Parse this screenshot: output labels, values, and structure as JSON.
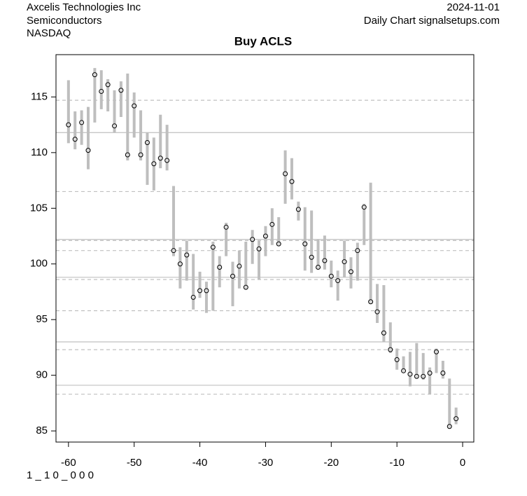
{
  "chart_data": {
    "type": "range",
    "header_left": [
      "Axcelis Technologies Inc",
      "Semiconductors",
      "NASDAQ"
    ],
    "header_right": [
      "2024-11-01",
      "Daily Chart signalsetups.com"
    ],
    "title": "Buy ACLS",
    "footer": "1 _ 1 0 _ 0 0 0",
    "x": [
      -60,
      -59,
      -58,
      -57,
      -56,
      -55,
      -54,
      -53,
      -52,
      -51,
      -50,
      -49,
      -48,
      -47,
      -46,
      -45,
      -44,
      -43,
      -42,
      -41,
      -40,
      -39,
      -38,
      -37,
      -36,
      -35,
      -34,
      -33,
      -32,
      -31,
      -30,
      -29,
      -28,
      -27,
      -26,
      -25,
      -24,
      -23,
      -22,
      -21,
      -20,
      -19,
      -18,
      -17,
      -16,
      -15,
      -14,
      -13,
      -12,
      -11,
      -10,
      -9,
      -8,
      -7,
      -6,
      -5,
      -4,
      -3,
      -2,
      -1
    ],
    "high": [
      116.5,
      113.7,
      113.8,
      114.1,
      117.6,
      117.4,
      116.6,
      115.6,
      116.4,
      117.1,
      115.4,
      113.8,
      111.8,
      111.35,
      113.4,
      112.5,
      107.0,
      101.5,
      102.1,
      100.9,
      99.3,
      98.4,
      102.0,
      100.7,
      103.7,
      100.2,
      101.2,
      102.0,
      103.05,
      102.1,
      103.4,
      105.0,
      104.2,
      110.2,
      109.5,
      105.6,
      105.1,
      104.8,
      102.2,
      102.55,
      100.3,
      99.4,
      102.1,
      100.6,
      101.9,
      105.4,
      107.3,
      98.2,
      98.1,
      94.75,
      92.4,
      91.7,
      92.1,
      92.9,
      92.0,
      90.7,
      92.4,
      91.3,
      89.7,
      87.1
    ],
    "low": [
      110.85,
      110.3,
      110.7,
      108.5,
      112.7,
      113.9,
      113.7,
      111.8,
      113.2,
      109.3,
      111.35,
      109.3,
      107.1,
      106.6,
      108.6,
      108.4,
      100.7,
      97.8,
      98.5,
      95.9,
      96.95,
      95.6,
      95.8,
      97.9,
      100.7,
      96.2,
      97.8,
      97.9,
      100.0,
      98.6,
      100.7,
      101.7,
      101.7,
      105.4,
      105.8,
      103.9,
      99.4,
      99.2,
      99.6,
      99.5,
      97.9,
      96.7,
      98.8,
      97.8,
      98.5,
      101.7,
      96.5,
      94.7,
      93.0,
      92.0,
      90.5,
      90.4,
      89.0,
      89.7,
      89.6,
      88.3,
      90.2,
      89.7,
      85.25,
      85.6
    ],
    "close": [
      112.5,
      111.2,
      112.7,
      110.2,
      117.0,
      115.5,
      116.1,
      112.4,
      115.6,
      109.8,
      114.2,
      109.8,
      110.9,
      109.0,
      109.5,
      109.3,
      101.2,
      100.0,
      100.8,
      97.0,
      97.6,
      97.6,
      101.5,
      99.7,
      103.3,
      98.9,
      99.8,
      97.9,
      102.2,
      101.35,
      102.5,
      103.55,
      101.8,
      108.1,
      107.4,
      104.9,
      101.8,
      100.6,
      99.7,
      100.3,
      98.9,
      98.5,
      100.2,
      99.3,
      101.2,
      105.1,
      96.6,
      95.7,
      93.8,
      92.3,
      91.4,
      90.4,
      90.1,
      89.9,
      89.9,
      90.2,
      92.1,
      90.2,
      85.4,
      86.1
    ],
    "bar_color": "#bebebe",
    "dot_color": "#d9d9d9",
    "solid_levels": [
      111.8,
      102.2,
      98.8,
      93.0,
      89.1
    ],
    "dashed_levels": [
      114.7,
      106.5,
      102.1,
      101.2,
      98.6,
      95.8,
      92.3,
      88.3
    ],
    "level_color": "#c0c0c0",
    "xlim": [
      -61.9,
      1.7
    ],
    "ylim": [
      84.0,
      118.8
    ],
    "xticks": [
      -60,
      -50,
      -40,
      -30,
      -20,
      -10,
      0
    ],
    "yticks": [
      85,
      90,
      95,
      100,
      105,
      110,
      115
    ]
  }
}
